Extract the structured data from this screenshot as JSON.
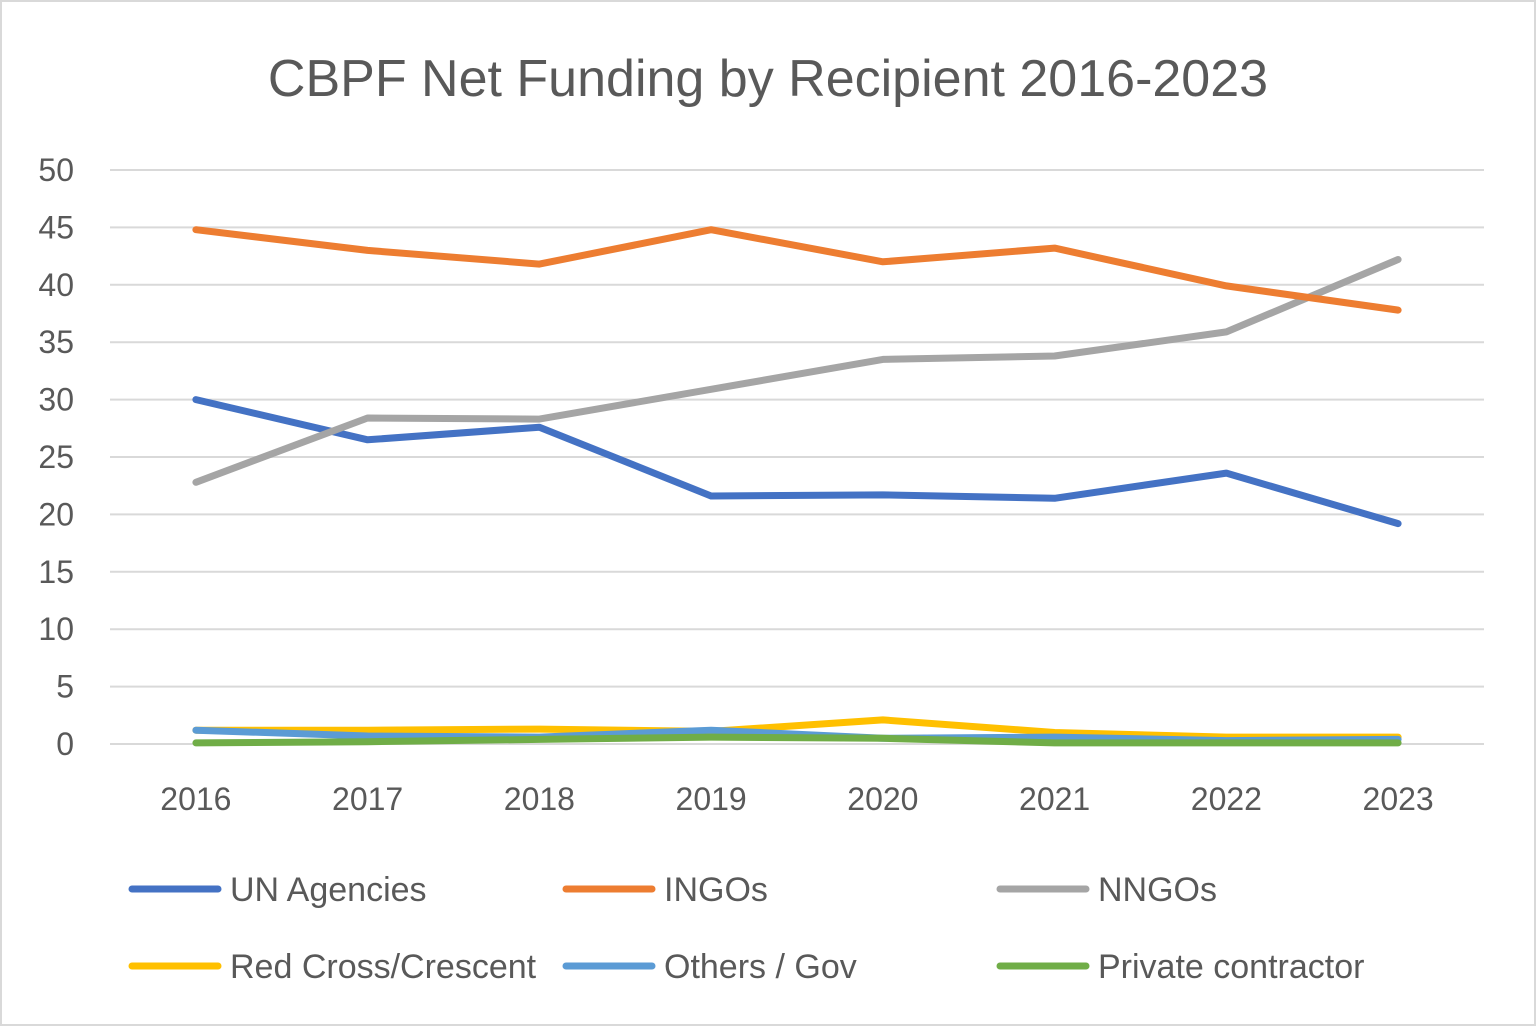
{
  "chart_data": {
    "type": "line",
    "title": "CBPF Net Funding by Recipient 2016-2023",
    "xlabel": "",
    "ylabel": "",
    "ylim": [
      0,
      50
    ],
    "yticks": [
      0,
      5,
      10,
      15,
      20,
      25,
      30,
      35,
      40,
      45,
      50
    ],
    "grid": true,
    "legend_position": "bottom",
    "categories": [
      "2016",
      "2017",
      "2018",
      "2019",
      "2020",
      "2021",
      "2022",
      "2023"
    ],
    "series": [
      {
        "name": "UN Agencies",
        "color": "#4472C4",
        "values": [
          30.0,
          26.5,
          27.6,
          21.6,
          21.7,
          21.4,
          23.6,
          19.2
        ]
      },
      {
        "name": "INGOs",
        "color": "#ED7D31",
        "values": [
          44.8,
          43.0,
          41.8,
          44.8,
          42.0,
          43.2,
          39.9,
          37.8
        ]
      },
      {
        "name": "NNGOs",
        "color": "#A5A5A5",
        "values": [
          22.8,
          28.4,
          28.3,
          30.9,
          33.5,
          33.8,
          35.9,
          42.2
        ]
      },
      {
        "name": "Red Cross/Crescent",
        "color": "#FFC000",
        "values": [
          1.2,
          1.2,
          1.3,
          1.1,
          2.1,
          1.0,
          0.6,
          0.6
        ]
      },
      {
        "name": "Others / Gov",
        "color": "#5B9BD5",
        "values": [
          1.2,
          0.7,
          0.6,
          1.2,
          0.5,
          0.6,
          0.3,
          0.4
        ]
      },
      {
        "name": "Private contractor",
        "color": "#70AD47",
        "values": [
          0.1,
          0.2,
          0.4,
          0.6,
          0.5,
          0.1,
          0.1,
          0.1
        ]
      }
    ]
  }
}
